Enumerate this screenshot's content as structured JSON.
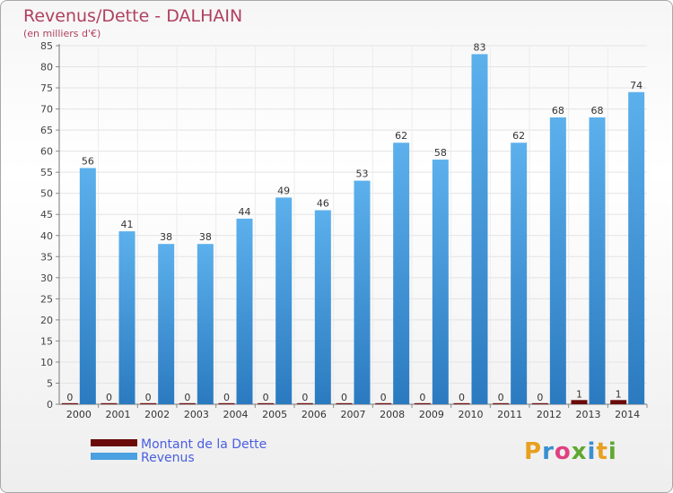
{
  "chart_data": {
    "type": "bar",
    "title": "Revenus/Dette - DALHAIN",
    "subtitle": "(en milliers d'€)",
    "categories": [
      "2000",
      "2001",
      "2002",
      "2003",
      "2004",
      "2005",
      "2006",
      "2007",
      "2008",
      "2009",
      "2010",
      "2011",
      "2012",
      "2013",
      "2014"
    ],
    "series": [
      {
        "name": "Montant de la Dette",
        "values": [
          0,
          0,
          0,
          0,
          0,
          0,
          0,
          0,
          0,
          0,
          0,
          0,
          0,
          1,
          1
        ],
        "color": "#6b0a0a"
      },
      {
        "name": "Revenus",
        "values": [
          56,
          41,
          38,
          38,
          44,
          49,
          46,
          53,
          62,
          58,
          83,
          62,
          68,
          68,
          74
        ],
        "color": "#4aa0e0"
      }
    ],
    "ylim": [
      0,
      85
    ],
    "yticks": [
      0,
      5,
      10,
      15,
      20,
      25,
      30,
      35,
      40,
      45,
      50,
      55,
      60,
      65,
      70,
      75,
      80,
      85
    ],
    "grid": true,
    "legend_position": "bottom-left"
  },
  "brand": {
    "letters": [
      "P",
      "r",
      "o",
      "x",
      "i",
      "t",
      "i"
    ],
    "colors": [
      "#e8a020",
      "#3a8fd0",
      "#e04080",
      "#60a830",
      "#3a8fd0",
      "#e8a020",
      "#60a830"
    ]
  }
}
